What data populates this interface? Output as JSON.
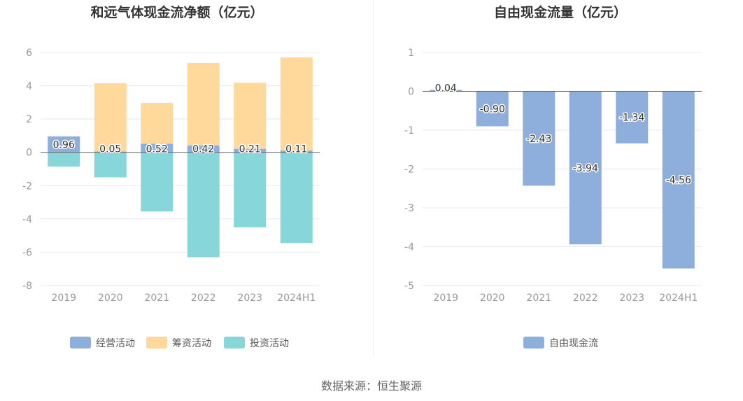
{
  "colors": {
    "operating": "#8eaedb",
    "financing": "#ffd99c",
    "investing": "#86d6da",
    "free": "#8eaedb",
    "grid": "#e6e8ee",
    "zero_line": "#666666",
    "axis_text": "#999999",
    "title_text": "#333333"
  },
  "source_text": "数据来源：恒生聚源",
  "chart_data": [
    {
      "type": "bar",
      "title": "和远气体现金流净额（亿元）",
      "categories": [
        "2019",
        "2020",
        "2021",
        "2022",
        "2023",
        "2024H1"
      ],
      "ylim": [
        -8,
        6
      ],
      "yticks": [
        6,
        4,
        2,
        0,
        -2,
        -4,
        -6,
        -8
      ],
      "stacked": true,
      "grid": true,
      "legend_position": "bottom",
      "series": [
        {
          "name": "经营活动",
          "color_key": "operating",
          "values": [
            0.96,
            0.05,
            0.52,
            0.42,
            0.21,
            0.11
          ],
          "labels": [
            "0.96",
            "0.05",
            "0.52",
            "0.42",
            "0.21",
            "0.11"
          ]
        },
        {
          "name": "筹资活动",
          "color_key": "financing",
          "values": [
            0.0,
            4.1,
            2.45,
            4.95,
            3.97,
            5.6
          ]
        },
        {
          "name": "投资活动",
          "color_key": "investing",
          "values": [
            -0.85,
            -1.5,
            -3.55,
            -6.3,
            -4.5,
            -5.45
          ]
        }
      ]
    },
    {
      "type": "bar",
      "title": "自由现金流量（亿元）",
      "categories": [
        "2019",
        "2020",
        "2021",
        "2022",
        "2023",
        "2024H1"
      ],
      "ylim": [
        -5,
        1
      ],
      "yticks": [
        1,
        0,
        -1,
        -2,
        -3,
        -4,
        -5
      ],
      "grid": true,
      "legend_position": "bottom",
      "series": [
        {
          "name": "自由现金流",
          "color_key": "free",
          "values": [
            0.04,
            -0.9,
            -2.43,
            -3.94,
            -1.34,
            -4.56
          ],
          "labels": [
            "0.04",
            "-0.90",
            "-2.43",
            "-3.94",
            "-1.34",
            "-4.56"
          ]
        }
      ]
    }
  ]
}
